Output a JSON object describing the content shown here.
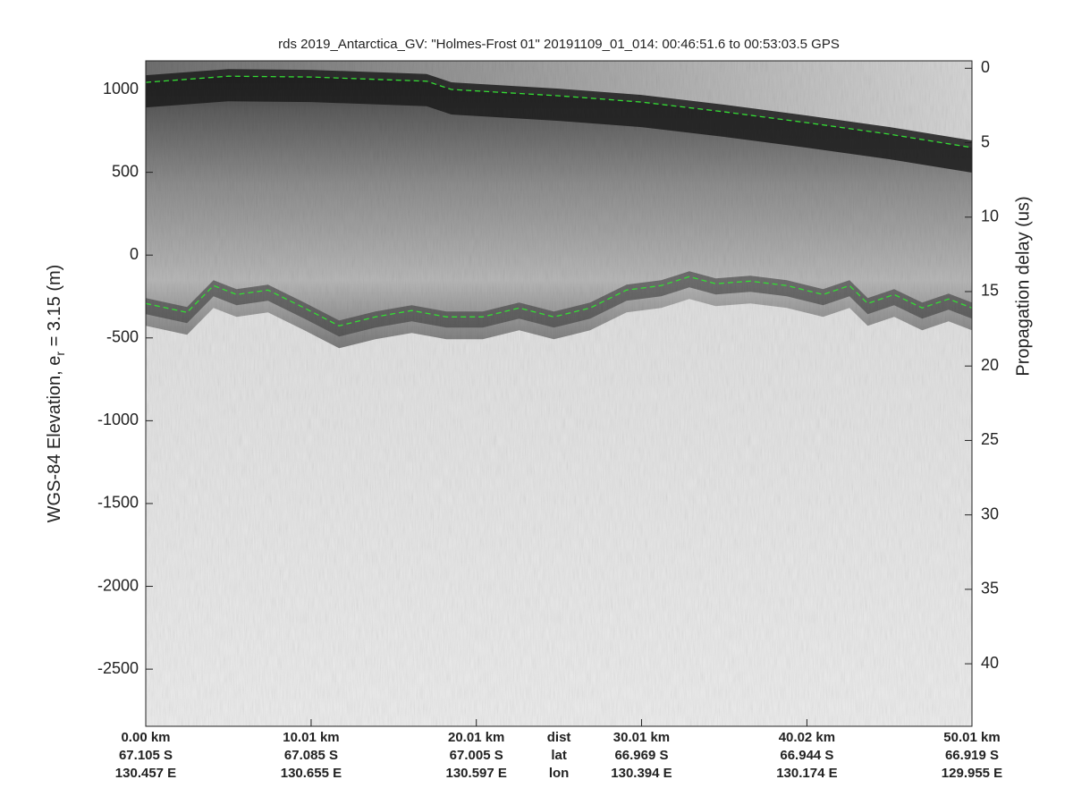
{
  "chart_data": {
    "type": "echogram",
    "title": "rds 2019_Antarctica_GV: \"Holmes-Frost 01\"  20191109_01_014: 00:46:51.6 to 00:53:03.5 GPS",
    "ylabel": "WGS-84 Elevation, e",
    "ylabel_sub": "r",
    "ylabel_tail": " = 3.15 (m)",
    "y2label": "Propagation delay (us)",
    "xlim": [
      0,
      50.01
    ],
    "ylim": [
      -2845,
      1173
    ],
    "y2lim": [
      44.2,
      -0.5
    ],
    "yticks": [
      -2500,
      -2000,
      -1500,
      -1000,
      -500,
      0,
      500,
      1000
    ],
    "y2ticks": [
      0,
      5,
      10,
      15,
      20,
      25,
      30,
      35,
      40
    ],
    "xticks": [
      {
        "value": 0,
        "label": "0.00 km"
      },
      {
        "value": 10.01,
        "label": "10.01 km"
      },
      {
        "value": 20.01,
        "label": "20.01 km"
      },
      {
        "value": 30.01,
        "label": "30.01 km"
      },
      {
        "value": 40.02,
        "label": "40.02 km"
      },
      {
        "value": 50.01,
        "label": "50.01 km"
      }
    ],
    "xtick_lat": [
      "67.105 S",
      "67.085 S",
      "67.005 S",
      "66.969 S",
      "66.944 S",
      "66.919 S"
    ],
    "xtick_lon": [
      "130.457 E",
      "130.655 E",
      "130.597 E",
      "130.394 E",
      "130.174 E",
      "129.955 E"
    ],
    "xtick_row_labels": [
      "dist",
      "lat",
      "lon"
    ],
    "series": [
      {
        "name": "surface",
        "color": "#33dd33",
        "x": [
          0,
          5,
          10,
          17,
          18.5,
          25,
          30,
          35,
          40,
          45,
          50.01
        ],
        "values": [
          1043,
          1080,
          1075,
          1050,
          1000,
          962,
          924,
          865,
          800,
          730,
          649
        ]
      },
      {
        "name": "bottom",
        "color": "#33dd33",
        "x": [
          0,
          2.5,
          4.1,
          5.5,
          7.4,
          9.6,
          11.7,
          13.9,
          16.1,
          18.2,
          20.4,
          22.6,
          24.7,
          26.9,
          29.1,
          31.2,
          32.9,
          34.5,
          36.6,
          38.8,
          41,
          42.6,
          43.7,
          45.3,
          47,
          48.6,
          50.01
        ],
        "values": [
          -292,
          -346,
          -184,
          -238,
          -211,
          -319,
          -427,
          -373,
          -335,
          -373,
          -373,
          -319,
          -373,
          -319,
          -211,
          -184,
          -130,
          -173,
          -157,
          -184,
          -238,
          -184,
          -292,
          -238,
          -319,
          -265,
          -319
        ]
      }
    ]
  }
}
